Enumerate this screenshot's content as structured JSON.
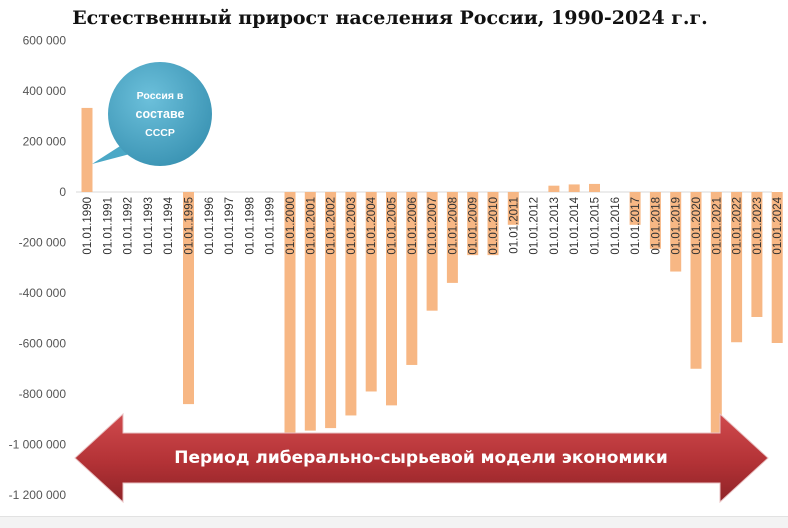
{
  "chart_data": {
    "type": "bar",
    "title": "Естественный прирост населения России, 1990-2024 г.г.",
    "xlabel": "",
    "ylabel": "",
    "ylim": [
      -1200000,
      600000
    ],
    "yticks": [
      600000,
      400000,
      200000,
      0,
      -200000,
      -400000,
      -600000,
      -800000,
      -1000000,
      -1200000
    ],
    "ytick_labels": [
      "600 000",
      "400 000",
      "200 000",
      "0",
      "-200 000",
      "-400 000",
      "-600 000",
      "-800 000",
      "-1 000 000",
      "-1 200 000"
    ],
    "grid": false,
    "bar_color": "#f7b784",
    "categories": [
      "01.01.1990",
      "01.01.1991",
      "01.01.1992",
      "01.01.1993",
      "01.01.1994",
      "01.01.1995",
      "01.01.1996",
      "01.01.1997",
      "01.01.1998",
      "01.01.1999",
      "01.01.2000",
      "01.01.2001",
      "01.01.2002",
      "01.01.2003",
      "01.01.2004",
      "01.01.2005",
      "01.01.2006",
      "01.01.2007",
      "01.01.2008",
      "01.01.2009",
      "01.01.2010",
      "01.01.2011",
      "01.01.2012",
      "01.01.2013",
      "01.01.2014",
      "01.01.2015",
      "01.01.2016",
      "01.01.2017",
      "01.01.2018",
      "01.01.2019",
      "01.01.2020",
      "01.01.2021",
      "01.01.2022",
      "01.01.2023",
      "01.01.2024"
    ],
    "values": [
      333000,
      0,
      0,
      0,
      0,
      -840000,
      0,
      0,
      0,
      0,
      -955000,
      -945000,
      -935000,
      -885000,
      -790000,
      -845000,
      -685000,
      -470000,
      -360000,
      -250000,
      -250000,
      -130000,
      0,
      25000,
      30000,
      32000,
      0,
      -130000,
      -225000,
      -315000,
      -700000,
      -955000,
      -595000,
      -495000,
      -598000
    ]
  },
  "annotations": {
    "bubble": {
      "lines": [
        "Россия в",
        "составе",
        "СССР"
      ],
      "color": "#4ba8c6"
    },
    "arrow": {
      "label": "Период либерально-сырьевой модели экономики",
      "color": "#c0393d"
    }
  }
}
